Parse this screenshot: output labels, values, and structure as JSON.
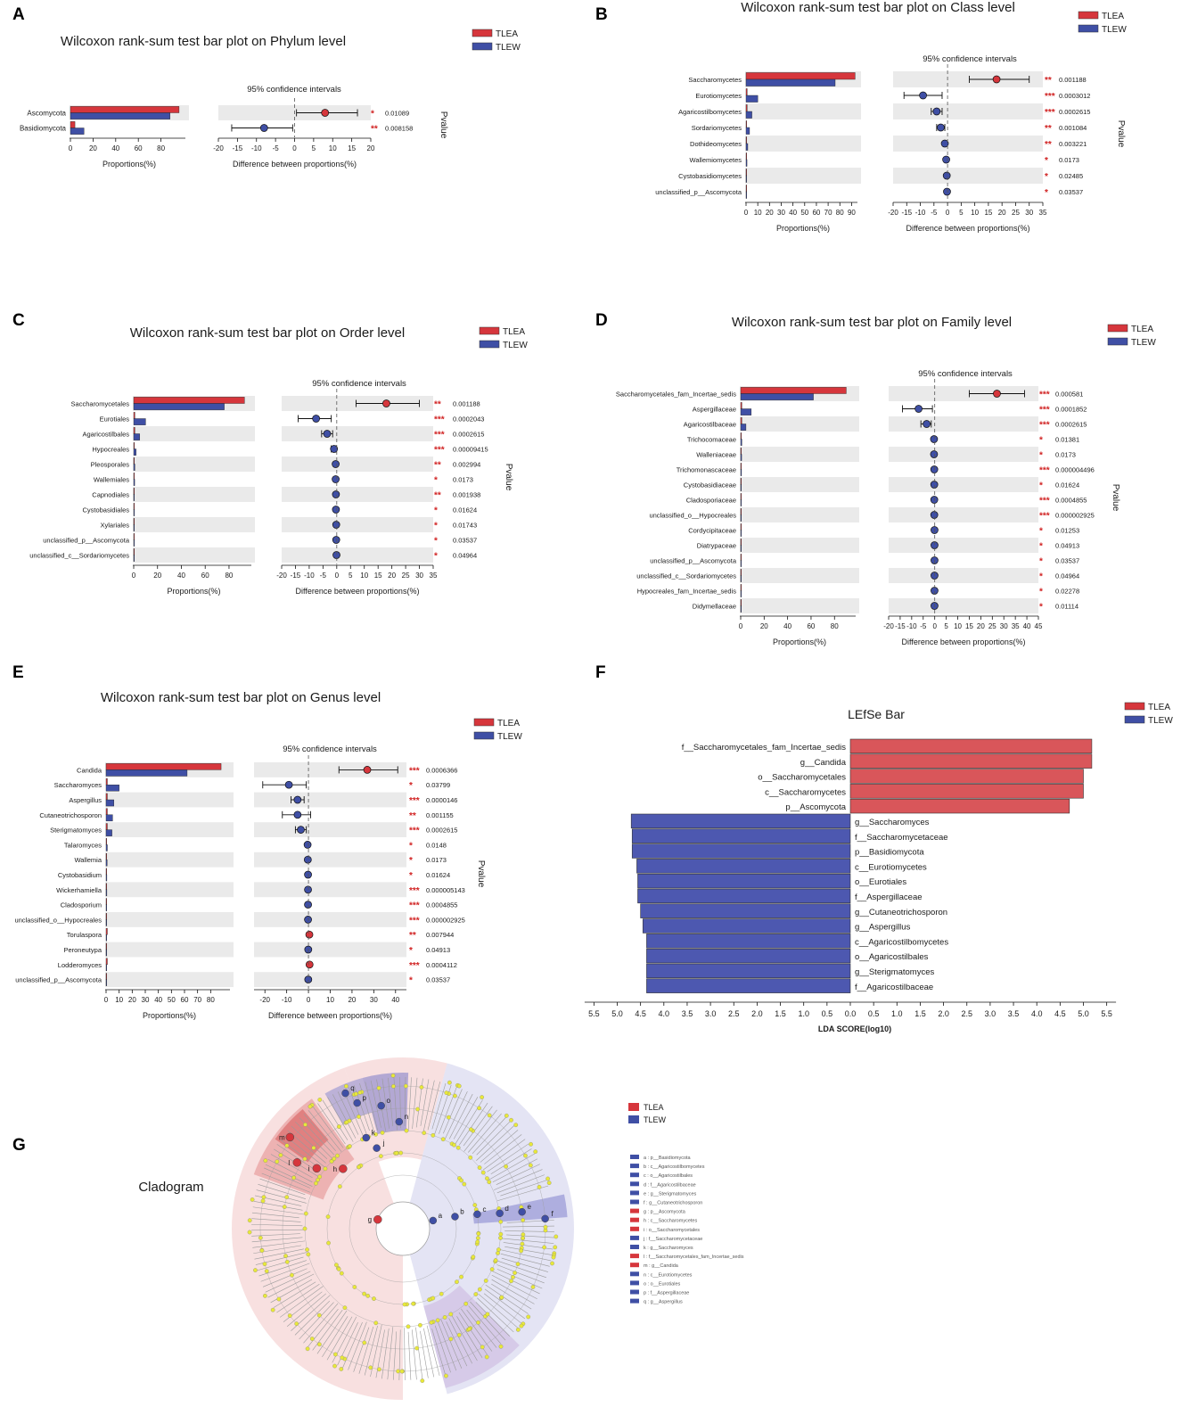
{
  "colors": {
    "tlea": "#d6363c",
    "tlew": "#3f4fa5",
    "band": "#eaeaea",
    "star": "#d02020",
    "lefse_red": "#d9565a",
    "lefse_blue": "#4d58b0",
    "node": "#e8e83a",
    "grey": "#9b9b9b"
  },
  "legend": {
    "tlea": "TLEA",
    "tlew": "TLEW"
  },
  "common": {
    "ci_title": "95% confidence intervals",
    "prop_label": "Proportions(%)",
    "diff_label": "Difference between proportions(%)",
    "pvalue_label": "Pvalue"
  },
  "chart_data": [
    {
      "type": "bar",
      "panel": "A",
      "title": "Wilcoxon rank-sum test bar plot on Phylum level",
      "taxa": [
        "Ascomycota",
        "Basidiomycota"
      ],
      "tlea": [
        96,
        4
      ],
      "tlew": [
        88,
        12
      ],
      "diff": [
        8,
        -8
      ],
      "ci_low": [
        0.5,
        -16.5
      ],
      "ci_high": [
        16.5,
        -0.5
      ],
      "stars": [
        "*",
        "**"
      ],
      "pvalues": [
        "0.01089",
        "0.008158"
      ],
      "prop_ticks": [
        "0",
        "20",
        "40",
        "60",
        "80"
      ],
      "prop_max": 100,
      "diff_ticks": [
        "-20",
        "-15",
        "-10",
        "-5",
        "0",
        "5",
        "10",
        "15",
        "20"
      ],
      "diff_range": [
        -20,
        20
      ]
    },
    {
      "type": "bar",
      "panel": "B",
      "title": "Wilcoxon rank-sum test bar plot on Class level",
      "taxa": [
        "Saccharomycetes",
        "Eurotiomycetes",
        "Agaricostilbomycetes",
        "Sordariomycetes",
        "Dothideomycetes",
        "Wallemiomycetes",
        "Cystobasidiomycetes",
        "unclassified_p__Ascomycota"
      ],
      "tlea": [
        93,
        1,
        1,
        0.5,
        0.5,
        0.3,
        0.3,
        0.3
      ],
      "tlew": [
        76,
        10,
        5,
        3,
        1.5,
        0.8,
        0.6,
        0.5
      ],
      "diff": [
        18,
        -9,
        -4,
        -2.5,
        -1,
        -0.5,
        -0.3,
        -0.2
      ],
      "ci_low": [
        8,
        -16,
        -6,
        -4,
        -1.5,
        -0.8,
        -0.5,
        -0.4
      ],
      "ci_high": [
        30,
        -2,
        -2,
        -1,
        -0.5,
        -0.2,
        -0.1,
        -0.05
      ],
      "stars": [
        "**",
        "***",
        "***",
        "**",
        "**",
        "*",
        "*",
        "*"
      ],
      "pvalues": [
        "0.001188",
        "0.0003012",
        "0.0002615",
        "0.001084",
        "0.003221",
        "0.0173",
        "0.02485",
        "0.03537"
      ],
      "prop_ticks": [
        "0",
        "10",
        "20",
        "30",
        "40",
        "50",
        "60",
        "70",
        "80",
        "90"
      ],
      "prop_max": 95,
      "diff_ticks": [
        "-20",
        "-15",
        "-10",
        "-5",
        "0",
        "5",
        "10",
        "15",
        "20",
        "25",
        "30",
        "35"
      ],
      "diff_range": [
        -20,
        35
      ]
    },
    {
      "type": "bar",
      "panel": "C",
      "title": "Wilcoxon rank-sum test bar plot on Order level",
      "taxa": [
        "Saccharomycetales",
        "Eurotiales",
        "Agaricostilbales",
        "Hypocreales",
        "Pleosporales",
        "Wallemiales",
        "Capnodiales",
        "Cystobasidiales",
        "Xylariales",
        "unclassified_p__Ascomycota",
        "unclassified_c__Sordariomycetes"
      ],
      "tlea": [
        93,
        1,
        1,
        0.5,
        0.4,
        0.3,
        0.3,
        0.3,
        0.3,
        0.3,
        0.3
      ],
      "tlew": [
        76,
        10,
        5,
        2,
        1,
        0.8,
        0.6,
        0.5,
        0.4,
        0.4,
        0.3
      ],
      "diff": [
        18,
        -7.5,
        -3.5,
        -1,
        -0.4,
        -0.4,
        -0.3,
        -0.3,
        -0.2,
        -0.2,
        -0.1
      ],
      "ci_low": [
        7,
        -14,
        -5.5,
        -2,
        -0.8,
        -0.7,
        -0.6,
        -0.5,
        -0.4,
        -0.4,
        -0.2
      ],
      "ci_high": [
        30,
        -2,
        -1.5,
        -0.3,
        -0.1,
        -0.1,
        -0.1,
        -0.1,
        -0.05,
        -0.05,
        -0.02
      ],
      "stars": [
        "**",
        "***",
        "***",
        "***",
        "**",
        "*",
        "**",
        "*",
        "*",
        "*",
        "*"
      ],
      "pvalues": [
        "0.001188",
        "0.0002043",
        "0.0002615",
        "0.00009415",
        "0.002994",
        "0.0173",
        "0.001938",
        "0.01624",
        "0.01743",
        "0.03537",
        "0.04964"
      ],
      "prop_ticks": [
        "0",
        "20",
        "40",
        "60",
        "80"
      ],
      "prop_max": 95,
      "diff_ticks": [
        "-20",
        "-15",
        "-10",
        "-5",
        "0",
        "5",
        "10",
        "15",
        "20",
        "25",
        "30",
        "35"
      ],
      "diff_range": [
        -20,
        35
      ]
    },
    {
      "type": "bar",
      "panel": "D",
      "title": "Wilcoxon rank-sum test bar plot on Family level",
      "taxa": [
        "Saccharomycetales_fam_Incertae_sedis",
        "Aspergillaceae",
        "Agaricostilbaceae",
        "Trichocomaceae",
        "Walleniaceae",
        "Trichomonascaceae",
        "Cystobasidiaceae",
        "Cladosporiaceae",
        "unclassified_o__Hypocreales",
        "Cordycipitaceae",
        "Diatrypaceae",
        "unclassified_p__Ascomycota",
        "unclassified_c__Sordariomycetes",
        "Hypocreales_fam_Incertae_sedis",
        "Didymellaceae"
      ],
      "tlea": [
        90,
        1,
        1,
        0.4,
        0.4,
        0.4,
        0.3,
        0.3,
        0.3,
        0.3,
        0.3,
        0.3,
        0.3,
        0.3,
        0.3
      ],
      "tlew": [
        62,
        9,
        4.5,
        1,
        0.8,
        0.7,
        0.6,
        0.6,
        0.5,
        0.5,
        0.5,
        0.4,
        0.4,
        0.4,
        0.3
      ],
      "diff": [
        27,
        -7,
        -3.5,
        -0.3,
        -0.3,
        -0.2,
        -0.2,
        -0.2,
        -0.2,
        -0.1,
        -0.1,
        -0.1,
        -0.1,
        -0.1,
        -0.1
      ],
      "ci_low": [
        15,
        -14,
        -6,
        -0.6,
        -0.6,
        -0.4,
        -0.4,
        -0.4,
        -0.4,
        -0.2,
        -0.2,
        -0.2,
        -0.2,
        -0.2,
        -0.2
      ],
      "ci_high": [
        39,
        -1,
        -1.5,
        -0.05,
        -0.05,
        -0.02,
        -0.02,
        -0.02,
        -0.02,
        -0.01,
        -0.01,
        -0.01,
        -0.01,
        -0.01,
        -0.01
      ],
      "stars": [
        "***",
        "***",
        "***",
        "*",
        "*",
        "***",
        "*",
        "***",
        "***",
        "*",
        "*",
        "*",
        "*",
        "*",
        "*"
      ],
      "pvalues": [
        "0.000581",
        "0.0001852",
        "0.0002615",
        "0.01381",
        "0.0173",
        "0.000004496",
        "0.01624",
        "0.0004855",
        "0.000002925",
        "0.01253",
        "0.04913",
        "0.03537",
        "0.04964",
        "0.02278",
        "0.01114"
      ],
      "prop_ticks": [
        "0",
        "20",
        "40",
        "60",
        "80"
      ],
      "prop_max": 95,
      "diff_ticks": [
        "-20",
        "-15",
        "-10",
        "-5",
        "0",
        "5",
        "10",
        "15",
        "20",
        "25",
        "30",
        "35",
        "40",
        "45"
      ],
      "diff_range": [
        -20,
        45
      ]
    },
    {
      "type": "bar",
      "panel": "E",
      "title": "Wilcoxon rank-sum test bar plot on Genus level",
      "taxa": [
        "Candida",
        "Saccharomyces",
        "Aspergillus",
        "Cutaneotrichosporon",
        "Sterigmatomyces",
        "Talaromyces",
        "Wallemia",
        "Cystobasidium",
        "Wickerhamiella",
        "Cladosporium",
        "unclassified_o__Hypocreales",
        "Torulaspora",
        "Peroneutypa",
        "Lodderomyces",
        "unclassified_p__Ascomycota"
      ],
      "tlea": [
        88,
        1,
        1,
        1,
        1,
        0.4,
        0.3,
        0.3,
        0.3,
        0.3,
        0.3,
        1,
        0.3,
        1,
        0.3
      ],
      "tlew": [
        62,
        10,
        6,
        5,
        4.5,
        1,
        0.8,
        0.6,
        0.6,
        0.5,
        0.5,
        0.3,
        0.4,
        0.3,
        0.3
      ],
      "diff": [
        27,
        -9,
        -5,
        -5,
        -3.5,
        -0.4,
        -0.3,
        -0.2,
        -0.2,
        -0.2,
        -0.2,
        0.4,
        -0.1,
        0.5,
        -0.1
      ],
      "ci_low": [
        14,
        -21,
        -8,
        -12,
        -6,
        -0.8,
        -0.6,
        -0.4,
        -0.4,
        -0.4,
        -0.4,
        0.1,
        -0.2,
        0.1,
        -0.2
      ],
      "ci_high": [
        41,
        -1,
        -2,
        1,
        -1,
        -0.1,
        -0.05,
        -0.05,
        -0.05,
        -0.05,
        -0.05,
        0.8,
        -0.02,
        0.9,
        -0.02
      ],
      "stars": [
        "***",
        "*",
        "***",
        "**",
        "***",
        "*",
        "*",
        "*",
        "***",
        "***",
        "***",
        "**",
        "*",
        "***",
        "*"
      ],
      "pvalues": [
        "0.0006366",
        "0.03799",
        "0.0000146",
        "0.001155",
        "0.0002615",
        "0.0148",
        "0.0173",
        "0.01624",
        "0.000005143",
        "0.0004855",
        "0.000002925",
        "0.007944",
        "0.04913",
        "0.0004112",
        "0.03537"
      ],
      "prop_ticks": [
        "0",
        "10",
        "20",
        "30",
        "40",
        "50",
        "60",
        "70",
        "80"
      ],
      "prop_max": 90,
      "diff_ticks": [
        "-20",
        "-10",
        "0",
        "10",
        "20",
        "30",
        "40"
      ],
      "diff_range": [
        -25,
        45
      ]
    },
    {
      "type": "bar",
      "panel": "F",
      "title": "LEfSe Bar",
      "xlabel": "LDA SCORE(log10)",
      "ticks_left": [
        "5.5",
        "5.0",
        "4.5",
        "4.0",
        "3.5",
        "3.0",
        "2.5",
        "2.0",
        "1.5",
        "1.0",
        "0.5",
        "0.0"
      ],
      "ticks_right": [
        "0.5",
        "1.0",
        "1.5",
        "2.0",
        "2.5",
        "3.0",
        "3.5",
        "4.0",
        "4.5",
        "5.0",
        "5.5"
      ],
      "bars": [
        {
          "label": "f__Saccharomycetales_fam_Incertae_sedis",
          "value": 5.18,
          "group": "TLEA"
        },
        {
          "label": "g__Candida",
          "value": 5.18,
          "group": "TLEA"
        },
        {
          "label": "o__Saccharomycetales",
          "value": 5.0,
          "group": "TLEA"
        },
        {
          "label": "c__Saccharomycetes",
          "value": 5.0,
          "group": "TLEA"
        },
        {
          "label": "p__Ascomycota",
          "value": 4.7,
          "group": "TLEA"
        },
        {
          "label": "g__Saccharomyces",
          "value": 4.7,
          "group": "TLEW"
        },
        {
          "label": "f__Saccharomycetaceae",
          "value": 4.68,
          "group": "TLEW"
        },
        {
          "label": "p__Basidiomycota",
          "value": 4.68,
          "group": "TLEW"
        },
        {
          "label": "c__Eurotiomycetes",
          "value": 4.58,
          "group": "TLEW"
        },
        {
          "label": "o__Eurotiales",
          "value": 4.56,
          "group": "TLEW"
        },
        {
          "label": "f__Aspergillaceae",
          "value": 4.56,
          "group": "TLEW"
        },
        {
          "label": "g__Cutaneotrichosporon",
          "value": 4.5,
          "group": "TLEW"
        },
        {
          "label": "g__Aspergillus",
          "value": 4.45,
          "group": "TLEW"
        },
        {
          "label": "c__Agaricostilbomycetes",
          "value": 4.37,
          "group": "TLEW"
        },
        {
          "label": "o__Agaricostilbales",
          "value": 4.37,
          "group": "TLEW"
        },
        {
          "label": "g__Sterigmatomyces",
          "value": 4.37,
          "group": "TLEW"
        },
        {
          "label": "f__Agaricostilbaceae",
          "value": 4.37,
          "group": "TLEW"
        }
      ]
    },
    {
      "type": "other",
      "panel": "G",
      "title": "Cladogram",
      "items": [
        {
          "text": "a : p__Basidiomycota",
          "group": "TLEW"
        },
        {
          "text": "b : c__Agaricostilbomycetes",
          "group": "TLEW"
        },
        {
          "text": "c : o__Agaricostilbales",
          "group": "TLEW"
        },
        {
          "text": "d : f__Agaricostilbaceae",
          "group": "TLEW"
        },
        {
          "text": "e : g__Sterigmatomyces",
          "group": "TLEW"
        },
        {
          "text": "f : g__Cutaneotrichosporon",
          "group": "TLEW"
        },
        {
          "text": "g : p__Ascomycota",
          "group": "TLEA"
        },
        {
          "text": "h : c__Saccharomycetes",
          "group": "TLEA"
        },
        {
          "text": "i : o__Saccharomycetales",
          "group": "TLEA"
        },
        {
          "text": "j : f__Saccharomycetaceae",
          "group": "TLEW"
        },
        {
          "text": "k : g__Saccharomyces",
          "group": "TLEW"
        },
        {
          "text": "l : f__Saccharomycetales_fam_Incertae_sedis",
          "group": "TLEA"
        },
        {
          "text": "m : g__Candida",
          "group": "TLEA"
        },
        {
          "text": "n : c__Eurotiomycetes",
          "group": "TLEW"
        },
        {
          "text": "o : o__Eurotiales",
          "group": "TLEW"
        },
        {
          "text": "p : f__Aspergillaceae",
          "group": "TLEW"
        },
        {
          "text": "q : g__Aspergillus",
          "group": "TLEW"
        }
      ],
      "node_letters_red": [
        "m",
        "l",
        "i",
        "h",
        "g"
      ],
      "node_letters_blue": [
        "q",
        "p",
        "o",
        "n",
        "k",
        "j",
        "a",
        "b",
        "c",
        "d",
        "e",
        "f"
      ]
    }
  ]
}
